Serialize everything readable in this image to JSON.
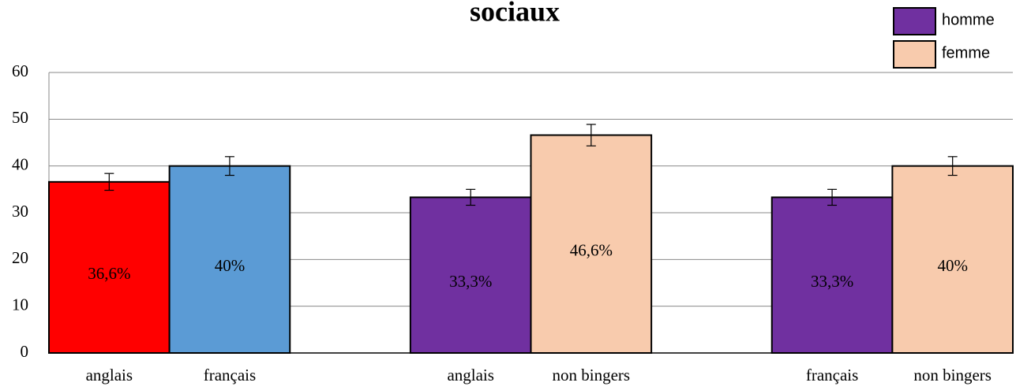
{
  "chart_data": {
    "type": "bar",
    "title": "sociaux",
    "categories": [
      "anglais",
      "français",
      null,
      "anglais",
      "non bingers",
      null,
      "français",
      "non bingers"
    ],
    "values": [
      36.6,
      40,
      null,
      33.3,
      46.6,
      null,
      33.3,
      40
    ],
    "value_labels": [
      "36,6%",
      "40%",
      null,
      "33,3%",
      "46,6%",
      null,
      "33,3%",
      "40%"
    ],
    "errors": [
      1.8,
      2,
      null,
      1.7,
      2.3,
      null,
      1.7,
      2
    ],
    "colors": [
      "#ff0000",
      "#5b9bd5",
      null,
      "#7030a0",
      "#f8cbad",
      null,
      "#7030a0",
      "#f8cbad"
    ],
    "legend": [
      {
        "name": "homme",
        "color": "#7030a0"
      },
      {
        "name": "femme",
        "color": "#f8cbad"
      }
    ],
    "ylim": [
      0,
      60
    ],
    "yticks": [
      0,
      10,
      20,
      30,
      40,
      50,
      60
    ],
    "grid": true
  }
}
